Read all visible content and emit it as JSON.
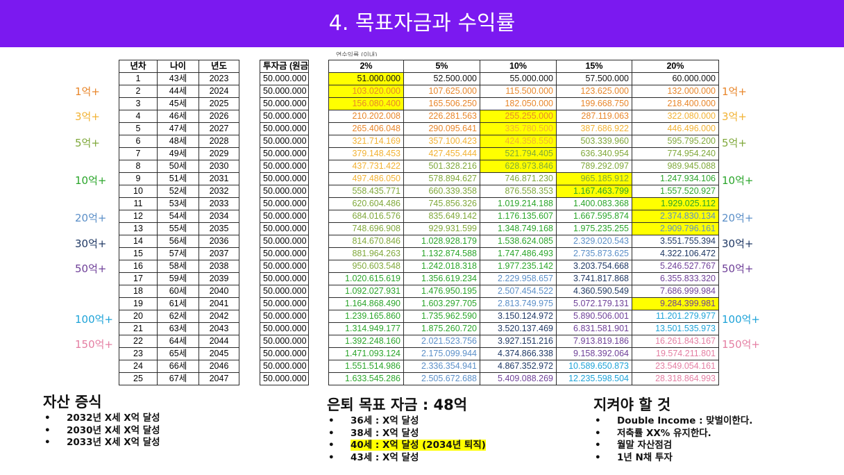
{
  "title": "4. 목표자금과 수익률",
  "colors": {
    "banner": "#7b19f0",
    "highlight": "#ffff00"
  },
  "rate_caption": "연수익률 (이내)",
  "left_table": {
    "headers": [
      "년차",
      "나이",
      "년도"
    ],
    "rows": [
      [
        "1",
        "43세",
        "2023"
      ],
      [
        "2",
        "44세",
        "2024"
      ],
      [
        "3",
        "45세",
        "2025"
      ],
      [
        "4",
        "46세",
        "2026"
      ],
      [
        "5",
        "47세",
        "2027"
      ],
      [
        "6",
        "48세",
        "2028"
      ],
      [
        "7",
        "49세",
        "2029"
      ],
      [
        "8",
        "50세",
        "2030"
      ],
      [
        "9",
        "51세",
        "2031"
      ],
      [
        "10",
        "52세",
        "2032"
      ],
      [
        "11",
        "53세",
        "2033"
      ],
      [
        "12",
        "54세",
        "2034"
      ],
      [
        "13",
        "55세",
        "2035"
      ],
      [
        "14",
        "56세",
        "2036"
      ],
      [
        "15",
        "57세",
        "2037"
      ],
      [
        "16",
        "58세",
        "2038"
      ],
      [
        "17",
        "59세",
        "2039"
      ],
      [
        "18",
        "60세",
        "2040"
      ],
      [
        "19",
        "61세",
        "2041"
      ],
      [
        "20",
        "62세",
        "2042"
      ],
      [
        "21",
        "63세",
        "2043"
      ],
      [
        "22",
        "64세",
        "2044"
      ],
      [
        "23",
        "65세",
        "2045"
      ],
      [
        "24",
        "66세",
        "2046"
      ],
      [
        "25",
        "67세",
        "2047"
      ]
    ]
  },
  "invest": {
    "header": "투자금 (원금)",
    "rows": [
      "50.000.000",
      "50.000.000",
      "50.000.000",
      "50.000.000",
      "50.000.000",
      "50.000.000",
      "50.000.000",
      "50.000.000",
      "50.000.000",
      "50.000.000",
      "50.000.000",
      "50.000.000",
      "50.000.000",
      "50.000.000",
      "50.000.000",
      "50.000.000",
      "50.000.000",
      "50.000.000",
      "50.000.000",
      "50.000.000",
      "50.000.000",
      "50.000.000",
      "50.000.000",
      "50.000.000",
      "50.000.000"
    ]
  },
  "rates": {
    "headers": [
      "2%",
      "5%",
      "10%",
      "15%",
      "20%"
    ],
    "rows": [
      [
        "51.000.000",
        "52.500.000",
        "55.000.000",
        "57.500.000",
        "60.000.000"
      ],
      [
        "103.020.000",
        "107.625.000",
        "115.500.000",
        "123.625.000",
        "132.000.000"
      ],
      [
        "156.080.400",
        "165.506.250",
        "182.050.000",
        "199.668.750",
        "218.400.000"
      ],
      [
        "210.202.008",
        "226.281.563",
        "255.255.000",
        "287.119.063",
        "322.080.000"
      ],
      [
        "265.406.048",
        "290.095.641",
        "335.780.500",
        "387.686.922",
        "446.496.000"
      ],
      [
        "321.714.169",
        "357.100.423",
        "424.358.550",
        "503.339.960",
        "595.795.200"
      ],
      [
        "379.148.453",
        "427.455.444",
        "521.794.405",
        "636.340.954",
        "774.954.240"
      ],
      [
        "437.731.422",
        "501.328.216",
        "628.973.846",
        "789.292.097",
        "989.945.088"
      ],
      [
        "497.486.050",
        "578.894.627",
        "746.871.230",
        "965.185.912",
        "1.247.934.106"
      ],
      [
        "558.435.771",
        "660.339.358",
        "876.558.353",
        "1.167.463.799",
        "1.557.520.927"
      ],
      [
        "620.604.486",
        "745.856.326",
        "1.019.214.188",
        "1.400.083.368",
        "1.929.025.112"
      ],
      [
        "684.016.576",
        "835.649.142",
        "1.176.135.607",
        "1.667.595.874",
        "2.374.830.134"
      ],
      [
        "748.696.908",
        "929.931.599",
        "1.348.749.168",
        "1.975.235.255",
        "2.909.796.161"
      ],
      [
        "814.670.846",
        "1.028.928.179",
        "1.538.624.085",
        "2.329.020.543",
        "3.551.755.394"
      ],
      [
        "881.964.263",
        "1.132.874.588",
        "1.747.486.493",
        "2.735.873.625",
        "4.322.106.472"
      ],
      [
        "950.603.548",
        "1.242.018.318",
        "1.977.235.142",
        "3.203.754.668",
        "5.246.527.767"
      ],
      [
        "1.020.615.619",
        "1.356.619.234",
        "2.229.958.657",
        "3.741.817.868",
        "6.355.833.320"
      ],
      [
        "1.092.027.931",
        "1.476.950.195",
        "2.507.454.522",
        "4.360.590.549",
        "7.686.999.984"
      ],
      [
        "1.164.868.490",
        "1.603.297.705",
        "2.813.749.975",
        "5.072.179.131",
        "9.284.399.981"
      ],
      [
        "1.239.165.860",
        "1.735.962.590",
        "3.150.124.972",
        "5.890.506.001",
        "11.201.279.977"
      ],
      [
        "1.314.949.177",
        "1.875.260.720",
        "3.520.137.469",
        "6.831.581.901",
        "13.501.535.973"
      ],
      [
        "1.392.248.160",
        "2.021.523.756",
        "3.927.151.216",
        "7.913.819.186",
        "16.261.843.167"
      ],
      [
        "1.471.093.124",
        "2.175.099.944",
        "4.374.866.338",
        "9.158.392.064",
        "19.574.211.801"
      ],
      [
        "1.551.514.986",
        "2.336.354.941",
        "4.867.352.972",
        "10.589.650.873",
        "23.549.054.161"
      ],
      [
        "1.633.545.286",
        "2.505.672.688",
        "5.409.088.269",
        "12.235.598.504",
        "28.318.864.993"
      ]
    ]
  },
  "side_labels_left": [
    {
      "text": "1억+",
      "color": "#e8862a"
    },
    {
      "text": "3억+",
      "color": "#f2b233"
    },
    {
      "text": "5억+",
      "color": "#7fa83a"
    },
    {
      "text": "10억+",
      "color": "#2aa52a"
    },
    {
      "text": "20억+",
      "color": "#5b8fc8"
    },
    {
      "text": "30억+",
      "color": "#1f3864"
    },
    {
      "text": "50억+",
      "color": "#6e3f98"
    },
    {
      "text": "100억+",
      "color": "#1ea3d8"
    },
    {
      "text": "150억+",
      "color": "#e47ea2"
    }
  ],
  "side_labels_right": [
    {
      "text": "1억+",
      "color": "#e8862a"
    },
    {
      "text": "3억+",
      "color": "#f2b233"
    },
    {
      "text": "5억+",
      "color": "#7fa83a"
    },
    {
      "text": "10억+",
      "color": "#2aa52a"
    },
    {
      "text": "20억+",
      "color": "#5b8fc8"
    },
    {
      "text": "30억+",
      "color": "#1f3864"
    },
    {
      "text": "50억+",
      "color": "#6e3f98"
    },
    {
      "text": "100억+",
      "color": "#1ea3d8"
    },
    {
      "text": "150억+",
      "color": "#e47ea2"
    }
  ],
  "tier_colors": [
    "#111111",
    "#e8862a",
    "#f2b233",
    "#7fa83a",
    "#2aa52a",
    "#5b8fc8",
    "#1f3864",
    "#6e3f98",
    "#1ea3d8",
    "#e47ea2"
  ],
  "highlight_cells": [
    [
      0,
      0
    ],
    [
      1,
      0
    ],
    [
      2,
      0
    ],
    [
      3,
      2
    ],
    [
      4,
      2
    ],
    [
      5,
      2
    ],
    [
      6,
      2
    ],
    [
      7,
      2
    ],
    [
      8,
      3
    ],
    [
      9,
      3
    ],
    [
      10,
      4
    ],
    [
      11,
      4
    ],
    [
      12,
      4
    ],
    [
      18,
      4
    ]
  ],
  "sections": {
    "asset": {
      "title": "자산 증식",
      "items": [
        "2032년 X세 X억 달성",
        "2030년 X세 X억 달성",
        "2033년 X세 X억 달성"
      ]
    },
    "retire": {
      "title": "은퇴 목표 자금 : 48억",
      "items": [
        "36세 : X억 달성",
        "38세 : X억 달성",
        "40세 : X억 달성 (2034년 퇴직)",
        "43세 : X억 달성"
      ],
      "highlight_index": 2
    },
    "rules": {
      "title": "지켜야 할 것",
      "items": [
        "Double Income : 맞벌이한다.",
        "저축률 XX% 유지한다.",
        "월말 자산점검",
        "1년 N채 투자"
      ]
    },
    "bullet": "•"
  }
}
